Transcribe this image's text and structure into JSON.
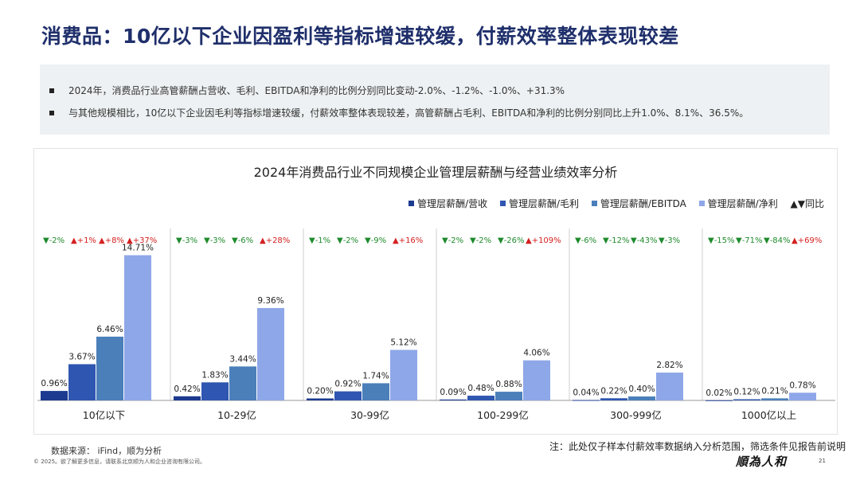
{
  "page": {
    "title": "消费品：10亿以下企业因盈利等指标增速较缓，付薪效率整体表现较差",
    "bullets": [
      "2024年，消费品行业高管薪酬占营收、毛利、EBITDA和净利的比例分别同比变动-2.0%、-1.2%、-1.0%、+31.3%",
      "与其他规模相比，10亿以下企业因毛利等指标增速较缓，付薪效率整体表现较差，高管薪酬占毛利、EBITDA和净利的比例分别同比上升1.0%、8.1%、36.5%。"
    ],
    "source": "数据来源： iFind，顺为分析",
    "copyright": "© 2025。欲了解更多信息，请联系北京顺为人和企业咨询有限公司。",
    "footnote": "注：此处仅子样本付薪效率数据纳入分析范围，筛选条件见报告前说明",
    "logo": "順為人和",
    "page_number": "21"
  },
  "colors": {
    "revenue": "#1c3a8f",
    "gross_profit": "#2f56b0",
    "ebitda": "#4b7fba",
    "net_profit": "#8ea7e8",
    "down": "#1e8a2c",
    "up": "#d42020"
  },
  "legend": {
    "yoy_label": "▲▼同比"
  },
  "chart_data": {
    "type": "bar",
    "title": "2024年消费品行业不同规模企业管理层薪酬与经营业绩效率分析",
    "categories": [
      "10亿以下",
      "10-29亿",
      "30-99亿",
      "100-299亿",
      "300-999亿",
      "1000亿以上"
    ],
    "series": [
      {
        "name": "管理层薪酬/营收",
        "values": [
          0.96,
          0.42,
          0.2,
          0.09,
          0.04,
          0.02
        ],
        "labels": [
          "0.96%",
          "0.42%",
          "0.20%",
          "0.09%",
          "0.04%",
          "0.02%"
        ]
      },
      {
        "name": "管理层薪酬/毛利",
        "values": [
          3.67,
          1.83,
          0.92,
          0.48,
          0.22,
          0.12
        ],
        "labels": [
          "3.67%",
          "1.83%",
          "0.92%",
          "0.48%",
          "0.22%",
          "0.12%"
        ]
      },
      {
        "name": "管理层薪酬/EBITDA",
        "values": [
          6.46,
          3.44,
          1.74,
          0.88,
          0.4,
          0.21
        ],
        "labels": [
          "6.46%",
          "3.44%",
          "1.74%",
          "0.88%",
          "0.40%",
          "0.21%"
        ]
      },
      {
        "name": "管理层薪酬/净利",
        "values": [
          14.71,
          9.36,
          5.12,
          4.06,
          2.82,
          0.78
        ],
        "labels": [
          "14.71%",
          "9.36%",
          "5.12%",
          "4.06%",
          "2.82%",
          "0.78%"
        ]
      }
    ],
    "yoy_changes": [
      [
        "▼-2%",
        "▲+1%",
        "▲+8%",
        "▲+37%"
      ],
      [
        "▼-3%",
        "▼-3%",
        "▼-6%",
        "▲+28%"
      ],
      [
        "▼-1%",
        "▼-2%",
        "▼-9%",
        "▲+16%"
      ],
      [
        "▼-2%",
        "▼-2%",
        "▼-26%",
        "▲+109%"
      ],
      [
        "▼-6%",
        "▼-12%",
        "▼-43%",
        "▼-3%"
      ],
      [
        "▼-15%",
        "▼-71%",
        "▼-84%",
        "▲+69%"
      ]
    ],
    "ylim": [
      0,
      15
    ],
    "legend_position": "top-right",
    "grid": false
  }
}
